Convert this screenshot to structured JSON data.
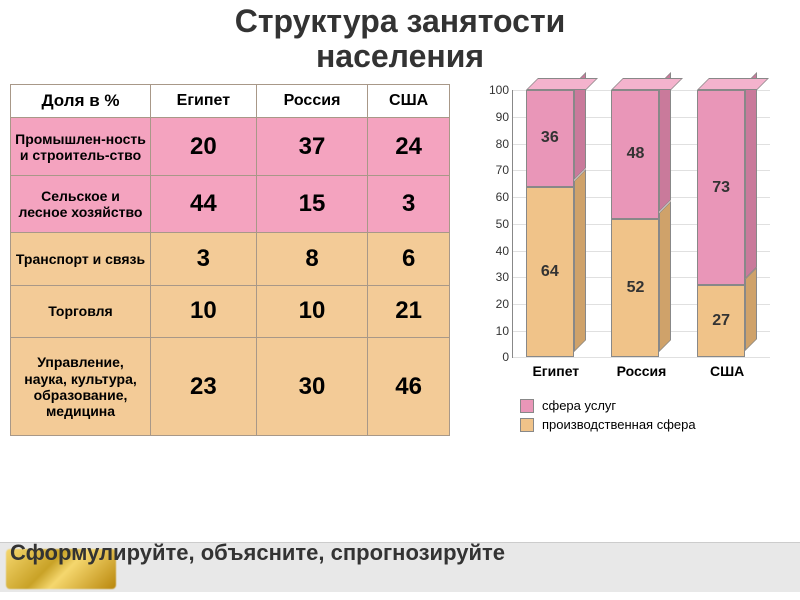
{
  "title_line1": "Структура занятости",
  "title_line2": "населения",
  "table": {
    "header": [
      "Доля в %",
      "Египет",
      "Россия",
      "США"
    ],
    "rows": [
      {
        "label": "Промышлен-ность и строитель-ство",
        "values": [
          20,
          37,
          24
        ],
        "color": "pink"
      },
      {
        "label": "Сельское и лесное хозяйство",
        "values": [
          44,
          15,
          3
        ],
        "color": "pink"
      },
      {
        "label": "Транспорт и связь",
        "values": [
          3,
          8,
          6
        ],
        "color": "tan"
      },
      {
        "label": "Торговля",
        "values": [
          10,
          10,
          21
        ],
        "color": "tan"
      },
      {
        "label": "Управление, наука, культура, образование, медицина",
        "values": [
          23,
          30,
          46
        ],
        "color": "tan"
      }
    ],
    "colors": {
      "pink": "#f4a3bf",
      "tan": "#f3cb97"
    },
    "border_color": "#a89888"
  },
  "chart": {
    "type": "stacked-bar-3d",
    "categories": [
      "Египет",
      "Россия",
      "США"
    ],
    "series": [
      {
        "name": "сфера услуг",
        "color_front": "#e996b8",
        "color_side": "#c97a9b",
        "color_top": "#f4b3cd",
        "values": [
          36,
          48,
          73
        ]
      },
      {
        "name": "производственная сфера",
        "color_front": "#f0c389",
        "color_side": "#cfa26a",
        "color_top": "#f8d9aa",
        "values": [
          64,
          52,
          27
        ]
      }
    ],
    "ymax": 100,
    "ytick_step": 10,
    "background_color": "#ffffff",
    "grid_color": "#e0e0e0",
    "label_fontsize": 14,
    "value_fontsize": 16
  },
  "legend": [
    {
      "label": "сфера услуг",
      "color": "#e996b8"
    },
    {
      "label": "производственная сфера",
      "color": "#f0c389"
    }
  ],
  "footer_text": "Сформулируйте, объясните, спрогнозируйте"
}
